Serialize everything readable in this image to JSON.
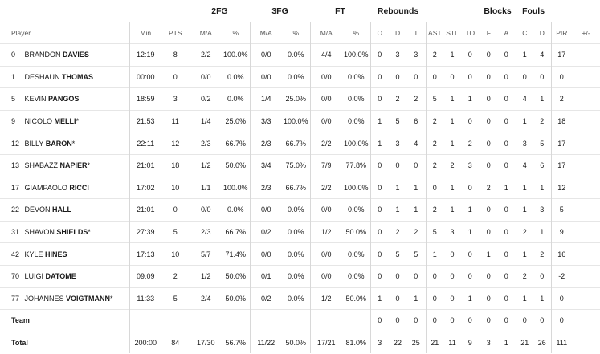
{
  "groups": {
    "fg2": "2FG",
    "fg3": "3FG",
    "ft": "FT",
    "rebounds": "Rebounds",
    "blocks": "Blocks",
    "fouls": "Fouls"
  },
  "columns": [
    "Player",
    "Min",
    "PTS",
    "M/A",
    "%",
    "M/A",
    "%",
    "M/A",
    "%",
    "O",
    "D",
    "T",
    "AST",
    "STL",
    "TO",
    "F",
    "A",
    "C",
    "D",
    "PIR",
    "+/-"
  ],
  "players": [
    {
      "num": "0",
      "first": "BRANDON",
      "last": "DAVIES",
      "star": "",
      "min": "12:19",
      "pts": "8",
      "fg2": "2/2",
      "fg2p": "100.0%",
      "fg3": "0/0",
      "fg3p": "0.0%",
      "ft": "4/4",
      "ftp": "100.0%",
      "o": "0",
      "d": "3",
      "t": "3",
      "ast": "2",
      "stl": "1",
      "to": "0",
      "bf": "0",
      "ba": "0",
      "fc": "1",
      "fd": "4",
      "pir": "17",
      "pm": ""
    },
    {
      "num": "1",
      "first": "DESHAUN",
      "last": "THOMAS",
      "star": "",
      "min": "00:00",
      "pts": "0",
      "fg2": "0/0",
      "fg2p": "0.0%",
      "fg3": "0/0",
      "fg3p": "0.0%",
      "ft": "0/0",
      "ftp": "0.0%",
      "o": "0",
      "d": "0",
      "t": "0",
      "ast": "0",
      "stl": "0",
      "to": "0",
      "bf": "0",
      "ba": "0",
      "fc": "0",
      "fd": "0",
      "pir": "0",
      "pm": ""
    },
    {
      "num": "5",
      "first": "KEVIN",
      "last": "PANGOS",
      "star": "",
      "min": "18:59",
      "pts": "3",
      "fg2": "0/2",
      "fg2p": "0.0%",
      "fg3": "1/4",
      "fg3p": "25.0%",
      "ft": "0/0",
      "ftp": "0.0%",
      "o": "0",
      "d": "2",
      "t": "2",
      "ast": "5",
      "stl": "1",
      "to": "1",
      "bf": "0",
      "ba": "0",
      "fc": "4",
      "fd": "1",
      "pir": "2",
      "pm": ""
    },
    {
      "num": "9",
      "first": "NICOLO",
      "last": "MELLI",
      "star": "*",
      "min": "21:53",
      "pts": "11",
      "fg2": "1/4",
      "fg2p": "25.0%",
      "fg3": "3/3",
      "fg3p": "100.0%",
      "ft": "0/0",
      "ftp": "0.0%",
      "o": "1",
      "d": "5",
      "t": "6",
      "ast": "2",
      "stl": "1",
      "to": "0",
      "bf": "0",
      "ba": "0",
      "fc": "1",
      "fd": "2",
      "pir": "18",
      "pm": ""
    },
    {
      "num": "12",
      "first": "BILLY",
      "last": "BARON",
      "star": "*",
      "min": "22:11",
      "pts": "12",
      "fg2": "2/3",
      "fg2p": "66.7%",
      "fg3": "2/3",
      "fg3p": "66.7%",
      "ft": "2/2",
      "ftp": "100.0%",
      "o": "1",
      "d": "3",
      "t": "4",
      "ast": "2",
      "stl": "1",
      "to": "2",
      "bf": "0",
      "ba": "0",
      "fc": "3",
      "fd": "5",
      "pir": "17",
      "pm": ""
    },
    {
      "num": "13",
      "first": "SHABAZZ",
      "last": "NAPIER",
      "star": "*",
      "min": "21:01",
      "pts": "18",
      "fg2": "1/2",
      "fg2p": "50.0%",
      "fg3": "3/4",
      "fg3p": "75.0%",
      "ft": "7/9",
      "ftp": "77.8%",
      "o": "0",
      "d": "0",
      "t": "0",
      "ast": "2",
      "stl": "2",
      "to": "3",
      "bf": "0",
      "ba": "0",
      "fc": "4",
      "fd": "6",
      "pir": "17",
      "pm": ""
    },
    {
      "num": "17",
      "first": "GIAMPAOLO",
      "last": "RICCI",
      "star": "",
      "min": "17:02",
      "pts": "10",
      "fg2": "1/1",
      "fg2p": "100.0%",
      "fg3": "2/3",
      "fg3p": "66.7%",
      "ft": "2/2",
      "ftp": "100.0%",
      "o": "0",
      "d": "1",
      "t": "1",
      "ast": "0",
      "stl": "1",
      "to": "0",
      "bf": "2",
      "ba": "1",
      "fc": "1",
      "fd": "1",
      "pir": "12",
      "pm": ""
    },
    {
      "num": "22",
      "first": "DEVON",
      "last": "HALL",
      "star": "",
      "min": "21:01",
      "pts": "0",
      "fg2": "0/0",
      "fg2p": "0.0%",
      "fg3": "0/0",
      "fg3p": "0.0%",
      "ft": "0/0",
      "ftp": "0.0%",
      "o": "0",
      "d": "1",
      "t": "1",
      "ast": "2",
      "stl": "1",
      "to": "1",
      "bf": "0",
      "ba": "0",
      "fc": "1",
      "fd": "3",
      "pir": "5",
      "pm": ""
    },
    {
      "num": "31",
      "first": "SHAVON",
      "last": "SHIELDS",
      "star": "*",
      "min": "27:39",
      "pts": "5",
      "fg2": "2/3",
      "fg2p": "66.7%",
      "fg3": "0/2",
      "fg3p": "0.0%",
      "ft": "1/2",
      "ftp": "50.0%",
      "o": "0",
      "d": "2",
      "t": "2",
      "ast": "5",
      "stl": "3",
      "to": "1",
      "bf": "0",
      "ba": "0",
      "fc": "2",
      "fd": "1",
      "pir": "9",
      "pm": ""
    },
    {
      "num": "42",
      "first": "KYLE",
      "last": "HINES",
      "star": "",
      "min": "17:13",
      "pts": "10",
      "fg2": "5/7",
      "fg2p": "71.4%",
      "fg3": "0/0",
      "fg3p": "0.0%",
      "ft": "0/0",
      "ftp": "0.0%",
      "o": "0",
      "d": "5",
      "t": "5",
      "ast": "1",
      "stl": "0",
      "to": "0",
      "bf": "1",
      "ba": "0",
      "fc": "1",
      "fd": "2",
      "pir": "16",
      "pm": ""
    },
    {
      "num": "70",
      "first": "LUIGI",
      "last": "DATOME",
      "star": "",
      "min": "09:09",
      "pts": "2",
      "fg2": "1/2",
      "fg2p": "50.0%",
      "fg3": "0/1",
      "fg3p": "0.0%",
      "ft": "0/0",
      "ftp": "0.0%",
      "o": "0",
      "d": "0",
      "t": "0",
      "ast": "0",
      "stl": "0",
      "to": "0",
      "bf": "0",
      "ba": "0",
      "fc": "2",
      "fd": "0",
      "pir": "-2",
      "pm": ""
    },
    {
      "num": "77",
      "first": "JOHANNES",
      "last": "VOIGTMANN",
      "star": "*",
      "min": "11:33",
      "pts": "5",
      "fg2": "2/4",
      "fg2p": "50.0%",
      "fg3": "0/2",
      "fg3p": "0.0%",
      "ft": "1/2",
      "ftp": "50.0%",
      "o": "1",
      "d": "0",
      "t": "1",
      "ast": "0",
      "stl": "0",
      "to": "1",
      "bf": "0",
      "ba": "0",
      "fc": "1",
      "fd": "1",
      "pir": "0",
      "pm": ""
    }
  ],
  "team": {
    "label": "Team",
    "o": "0",
    "d": "0",
    "t": "0",
    "ast": "0",
    "stl": "0",
    "to": "0",
    "bf": "0",
    "ba": "0",
    "fc": "0",
    "fd": "0",
    "pir": "0"
  },
  "total": {
    "label": "Total",
    "min": "200:00",
    "pts": "84",
    "fg2": "17/30",
    "fg2p": "56.7%",
    "fg3": "11/22",
    "fg3p": "50.0%",
    "ft": "17/21",
    "ftp": "81.0%",
    "o": "3",
    "d": "22",
    "t": "25",
    "ast": "21",
    "stl": "11",
    "to": "9",
    "bf": "3",
    "ba": "1",
    "fc": "21",
    "fd": "26",
    "pir": "111"
  }
}
